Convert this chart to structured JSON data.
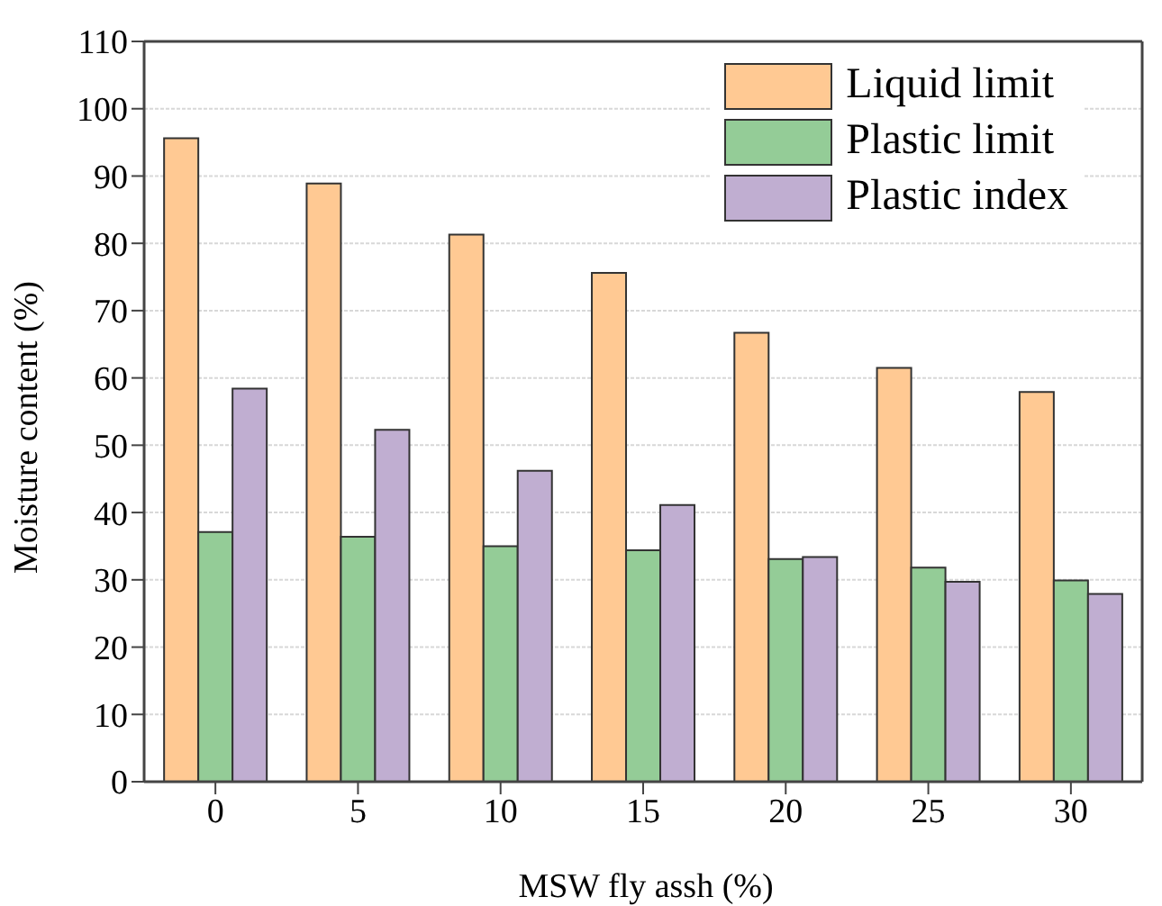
{
  "chart_data": {
    "type": "bar",
    "xlabel": "MSW fly assh (%)",
    "ylabel": "Moisture content (%)",
    "categories": [
      "0",
      "5",
      "10",
      "15",
      "20",
      "25",
      "30"
    ],
    "series": [
      {
        "name": "Liquid limit",
        "color": "#ffc993",
        "values": [
          95.6,
          88.9,
          81.3,
          75.6,
          66.7,
          61.5,
          57.9
        ]
      },
      {
        "name": "Plastic limit",
        "color": "#94cc97",
        "values": [
          37.1,
          36.4,
          35.0,
          34.4,
          33.1,
          31.8,
          29.9
        ]
      },
      {
        "name": "Plastic index",
        "color": "#c0aed1",
        "values": [
          58.4,
          52.3,
          46.2,
          41.1,
          33.4,
          29.7,
          27.9
        ]
      }
    ],
    "ylim": [
      0,
      110
    ],
    "yticks": [
      0,
      10,
      20,
      30,
      40,
      50,
      60,
      70,
      80,
      90,
      100,
      110
    ],
    "grid": "y",
    "legend": "top right"
  }
}
